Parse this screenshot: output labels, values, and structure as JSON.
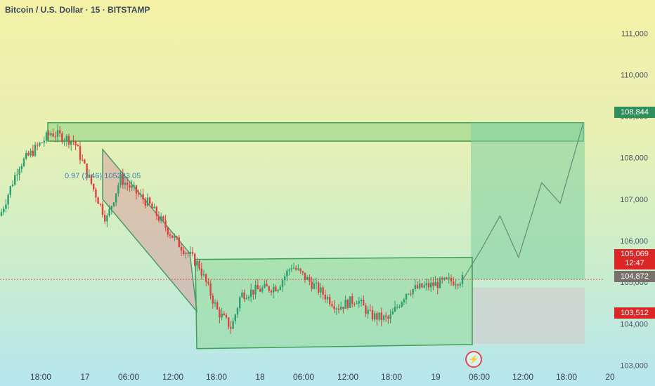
{
  "header": {
    "title": "Bitcoin / U.S. Dollar · 15 · BITSTAMP"
  },
  "labels": {
    "current_price": "105,069",
    "countdown": "12:47",
    "mid_price": "104,872",
    "target_price": "108,844",
    "stop_price": "103,512",
    "fib_text": "0.97 (1.46) 105233.05",
    "alert_icon": "lightning-alert-icon"
  },
  "colors": {
    "resistance_zone": "#7fcf82",
    "channel": "#4b9a6a",
    "channel_fill": "#d9a1a1",
    "range_box": "#8fd99a",
    "target_zone": "#7dcfa0",
    "stop_zone": "#cfcfcf",
    "bull_candle": "#2e9e6e",
    "bear_candle": "#e0403f"
  },
  "chart_data": {
    "type": "candlestick",
    "title": "Bitcoin / U.S. Dollar · 15 · BITSTAMP",
    "ylim": [
      102500,
      111800
    ],
    "y_ticks": [
      103000,
      104000,
      105000,
      106000,
      107000,
      108000,
      109000,
      110000,
      111000
    ],
    "x_ticks": [
      "18:00",
      "17",
      "06:00",
      "12:00",
      "18:00",
      "18",
      "06:00",
      "12:00",
      "18:00",
      "19",
      "06:00",
      "12:00",
      "18:00",
      "20"
    ],
    "price_path": [
      [
        0,
        106600
      ],
      [
        0.2,
        107800
      ],
      [
        0.55,
        108600
      ],
      [
        0.8,
        108400
      ],
      [
        1.0,
        107300
      ],
      [
        1.15,
        106500
      ],
      [
        1.3,
        107500
      ],
      [
        1.6,
        106900
      ],
      [
        1.9,
        106000
      ],
      [
        2.15,
        105400
      ],
      [
        2.35,
        104300
      ],
      [
        2.5,
        103900
      ],
      [
        2.6,
        104700
      ],
      [
        2.75,
        104800
      ],
      [
        3.0,
        104900
      ],
      [
        3.15,
        105400
      ],
      [
        3.4,
        104900
      ],
      [
        3.65,
        104400
      ],
      [
        3.85,
        104600
      ],
      [
        4.0,
        104200
      ],
      [
        4.2,
        104100
      ],
      [
        4.4,
        104800
      ],
      [
        4.6,
        104900
      ],
      [
        4.8,
        105000
      ],
      [
        5.0,
        105069
      ],
      [
        5.2,
        105800
      ],
      [
        5.4,
        106600
      ],
      [
        5.6,
        105600
      ],
      [
        5.85,
        107400
      ],
      [
        6.05,
        106900
      ],
      [
        6.3,
        108844
      ]
    ],
    "zones": [
      {
        "name": "resistance",
        "y": [
          108400,
          108844
        ]
      },
      {
        "name": "range",
        "y": [
          103400,
          105600
        ]
      },
      {
        "name": "target",
        "y": [
          105069,
          108844
        ]
      },
      {
        "name": "stop",
        "y": [
          103512,
          104872
        ]
      }
    ],
    "current_price": 105069,
    "grid": false
  }
}
